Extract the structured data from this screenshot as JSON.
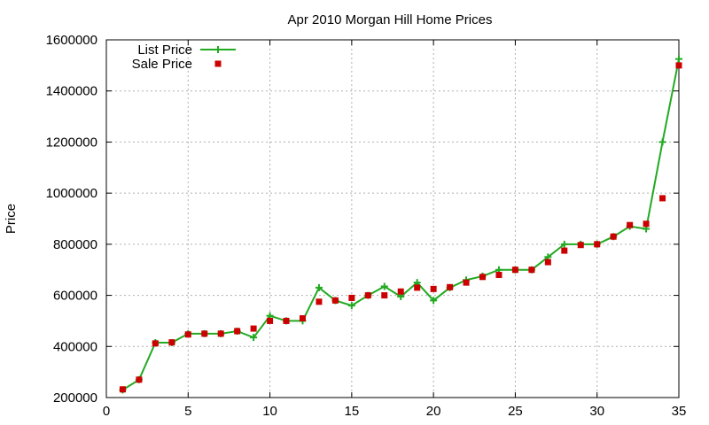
{
  "chart_data": {
    "type": "line",
    "title": "Apr 2010 Morgan Hill Home Prices",
    "xlabel": "",
    "ylabel": "Price",
    "xlim": [
      0,
      35
    ],
    "ylim": [
      200000,
      1600000
    ],
    "x_ticks": [
      0,
      5,
      10,
      15,
      20,
      25,
      30,
      35
    ],
    "y_ticks": [
      200000,
      400000,
      600000,
      800000,
      1000000,
      1200000,
      1400000,
      1600000
    ],
    "grid": true,
    "legend_position": "top-left",
    "series": [
      {
        "name": "List Price",
        "style": "line-cross",
        "color": "#22aa22",
        "x": [
          1,
          2,
          3,
          4,
          5,
          6,
          7,
          8,
          9,
          10,
          11,
          12,
          13,
          14,
          15,
          16,
          17,
          18,
          19,
          20,
          21,
          22,
          23,
          24,
          25,
          26,
          27,
          28,
          29,
          30,
          31,
          32,
          33,
          34,
          35
        ],
        "values": [
          230000,
          270000,
          415000,
          415000,
          450000,
          450000,
          450000,
          460000,
          435000,
          520000,
          500000,
          500000,
          630000,
          580000,
          560000,
          600000,
          635000,
          595000,
          650000,
          580000,
          630000,
          660000,
          675000,
          700000,
          700000,
          700000,
          750000,
          800000,
          800000,
          800000,
          830000,
          870000,
          860000,
          1200000,
          1525000
        ]
      },
      {
        "name": "Sale Price",
        "style": "square-marker",
        "color": "#cc0000",
        "x": [
          1,
          2,
          3,
          4,
          5,
          6,
          7,
          8,
          9,
          10,
          11,
          12,
          13,
          14,
          15,
          16,
          17,
          18,
          19,
          20,
          21,
          22,
          23,
          24,
          25,
          26,
          27,
          28,
          29,
          30,
          31,
          32,
          33,
          34,
          35
        ],
        "values": [
          232000,
          270000,
          412000,
          416000,
          447000,
          450000,
          450000,
          460000,
          470000,
          500000,
          500000,
          510000,
          575000,
          580000,
          590000,
          600000,
          600000,
          615000,
          630000,
          625000,
          632000,
          650000,
          672000,
          680000,
          700000,
          700000,
          730000,
          775000,
          797000,
          800000,
          830000,
          875000,
          880000,
          980000,
          1500000
        ]
      }
    ]
  }
}
